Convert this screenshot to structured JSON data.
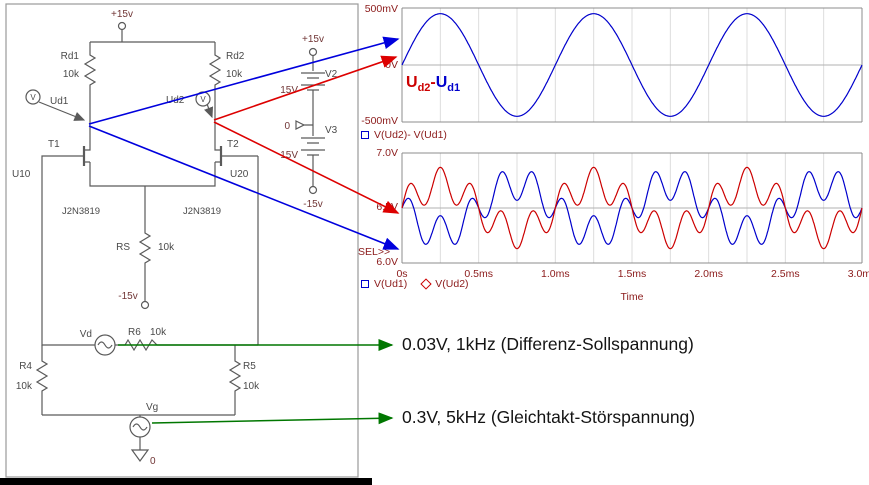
{
  "schematic": {
    "vcc_top": "+15v",
    "rd1_name": "Rd1",
    "rd1_value": "10k",
    "rd2_name": "Rd2",
    "rd2_value": "10k",
    "probe1": "V",
    "probe2": "V",
    "ud1": "Ud1",
    "ud2": "Ud2",
    "t1": "T1",
    "t2": "T2",
    "u10": "U10",
    "u20": "U20",
    "t1_model": "J2N3819",
    "t2_model": "J2N3819",
    "rs_name": "RS",
    "rs_value": "10k",
    "vee": "-15v",
    "vd_name": "Vd",
    "r6_name": "R6",
    "r6_value": "10k",
    "r4_name": "R4",
    "r4_value": "10k",
    "r5_name": "R5",
    "r5_value": "10k",
    "vg_name": "Vg",
    "gnd0": "0",
    "psu_vcc": "+15v",
    "psu_v2": "V2",
    "psu_v2_value": "15V",
    "psu_zero": "0",
    "psu_v3": "V3",
    "psu_v3_value": "15V",
    "psu_vee": "-15v"
  },
  "plots": {
    "top": {
      "y_ticks": [
        "500mV",
        "0V",
        "-500mV"
      ],
      "legend": "V(Ud2)- V(Ud1)",
      "diff_label": {
        "u_red": "U",
        "sub_red": "d2",
        "minus": "-",
        "u_blue": "U",
        "sub_blue": "d1"
      }
    },
    "bottom": {
      "y_ticks": [
        "7.0V",
        "6.5V",
        "6.0V"
      ],
      "sel": "SEL>>",
      "x_ticks": [
        "0s",
        "0.5ms",
        "1.0ms",
        "1.5ms",
        "2.0ms",
        "2.5ms",
        "3.0ms"
      ],
      "xlabel": "Time",
      "legend": [
        {
          "marker": "square",
          "label": "V(Ud1)"
        },
        {
          "marker": "diamond",
          "label": "V(Ud2)"
        }
      ]
    }
  },
  "annotations": [
    "0.03V, 1kHz (Differenz-Sollspannung)",
    "0.3V, 5kHz (Gleichtakt-Störspannung)"
  ],
  "colors": {
    "trace_blue": "#0000cc",
    "trace_red": "#cc0000",
    "arrow_blue": "#0000dd",
    "arrow_red": "#dd0000",
    "arrow_green": "#007700",
    "tick_text": "#8b1a1a"
  },
  "chart_data": [
    {
      "type": "line",
      "x_range_ms": [
        0,
        3
      ],
      "y_range": [
        -0.5,
        0.5
      ],
      "y_unit": "V",
      "y_tick_labels": [
        "500mV",
        "0V",
        "-500mV"
      ],
      "legend": [
        "V(Ud2)- V(Ud1)"
      ],
      "grid": true,
      "series": [
        {
          "name": "V(Ud2)-V(Ud1)",
          "color": "#0000cc",
          "offset_V": 0,
          "components": [
            {
              "frequency_kHz": 1,
              "amplitude_V": 0.45,
              "phase_deg": 0
            }
          ]
        }
      ]
    },
    {
      "type": "line",
      "x_range_ms": [
        0,
        3
      ],
      "y_range": [
        6.0,
        7.0
      ],
      "y_unit": "V",
      "y_tick_labels": [
        "7.0V",
        "6.5V",
        "6.0V"
      ],
      "x_tick_labels": [
        "0s",
        "0.5ms",
        "1.0ms",
        "1.5ms",
        "2.0ms",
        "2.5ms",
        "3.0ms"
      ],
      "xlabel": "Time",
      "legend": [
        "V(Ud1)",
        "V(Ud2)"
      ],
      "grid": true,
      "series": [
        {
          "name": "V(Ud1)",
          "color": "#0000cc",
          "offset_V": 6.5,
          "components": [
            {
              "frequency_kHz": 5,
              "amplitude_V": 0.15,
              "phase_deg": 0
            },
            {
              "frequency_kHz": 1,
              "amplitude_V": 0.22,
              "phase_deg": 180
            }
          ]
        },
        {
          "name": "V(Ud2)",
          "color": "#cc0000",
          "offset_V": 6.5,
          "components": [
            {
              "frequency_kHz": 5,
              "amplitude_V": 0.15,
              "phase_deg": 0
            },
            {
              "frequency_kHz": 1,
              "amplitude_V": 0.22,
              "phase_deg": 0
            }
          ]
        }
      ]
    }
  ]
}
